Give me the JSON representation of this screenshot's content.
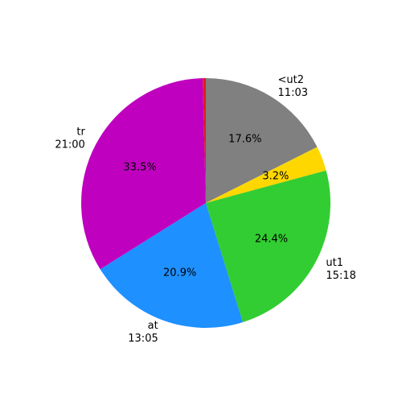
{
  "chart_data": {
    "type": "pie",
    "categories": [
      [
        "<ut2",
        "11:03"
      ],
      null,
      [
        "ut1",
        "15:18"
      ],
      [
        "at",
        "13:05"
      ],
      [
        "tr",
        "21:00"
      ],
      null
    ],
    "values": [
      17.6,
      3.2,
      24.4,
      20.9,
      33.5,
      0.4
    ],
    "value_labels": [
      "17.6%",
      "3.2%",
      "24.4%",
      "20.9%",
      "33.5%",
      null
    ],
    "colors": [
      "#808080",
      "#ffd700",
      "#32cd32",
      "#1e90ff",
      "#bf00bf",
      "#e41a1c"
    ],
    "start_angle": 90,
    "direction": "clockwise"
  }
}
